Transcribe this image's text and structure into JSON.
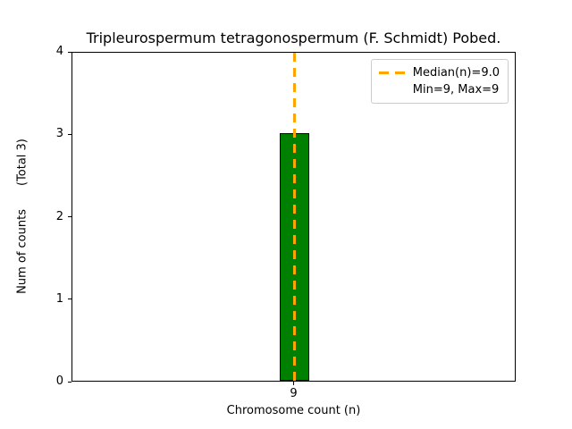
{
  "chart_data": {
    "type": "bar",
    "title": "Tripleurospermum tetragonospermum (F. Schmidt) Pobed.",
    "xlabel": "Chromosome count (n)",
    "ylabel": "Num of counts",
    "ylabel_secondary": "(Total 3)",
    "categories": [
      "9"
    ],
    "values": [
      3
    ],
    "ylim": [
      0,
      4
    ],
    "yticks": [
      0,
      1,
      2,
      3,
      4
    ],
    "bar_color": "#008000",
    "bar_edge_color": "#000000",
    "median_line": {
      "x": "9",
      "color": "#FFA500",
      "style": "dashed"
    },
    "legend": {
      "position": "upper right",
      "entries": [
        {
          "label": "Median(n)=9.0",
          "marker": "dashed-line",
          "color": "#FFA500"
        },
        {
          "label": "Min=9, Max=9",
          "marker": "none",
          "color": ""
        }
      ]
    },
    "grid": false,
    "background": "#ffffff"
  }
}
